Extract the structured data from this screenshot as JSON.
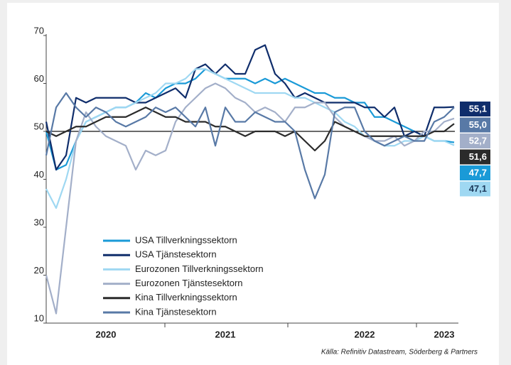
{
  "chart_data": {
    "type": "line",
    "categories": [
      null,
      null,
      null,
      null,
      null,
      null,
      "2020",
      null,
      null,
      null,
      null,
      null,
      null,
      null,
      null,
      null,
      null,
      null,
      "2021",
      null,
      null,
      null,
      null,
      null,
      null,
      null,
      null,
      null,
      null,
      null,
      null,
      null,
      "2022",
      null,
      null,
      null,
      null,
      null,
      null,
      null,
      "2023",
      null
    ],
    "ylim": [
      10,
      70
    ],
    "yticks": [
      10,
      20,
      30,
      40,
      50,
      60,
      70
    ],
    "hline": 50,
    "legend": "lower left",
    "source": "Källa: Refinitiv Datastream, Söderberg & Partners",
    "series": [
      {
        "name": "USA Tillverkningssektorn",
        "color": "#1a9ad7",
        "last_label": "47,7",
        "values": [
          50,
          42,
          43,
          48,
          52,
          53,
          54,
          55,
          55,
          56,
          58,
          57,
          59,
          60,
          60,
          61,
          63,
          62,
          61,
          61,
          61,
          60,
          61,
          60,
          61,
          60,
          59,
          58,
          58,
          57,
          57,
          56,
          56,
          53,
          53,
          52,
          51,
          50,
          49,
          48,
          48,
          47.7
        ]
      },
      {
        "name": "USA Tjänstesektorn",
        "color": "#0f2d6b",
        "last_label": "55,1",
        "values": [
          52,
          42,
          45,
          57,
          56,
          57,
          57,
          57,
          57,
          56,
          56,
          57,
          58,
          59,
          57,
          63,
          64,
          62,
          64,
          62,
          62,
          67,
          68,
          62,
          60,
          57,
          58,
          57,
          56,
          56,
          56,
          56,
          55,
          55,
          53,
          55,
          49,
          50,
          49,
          55,
          55,
          55.1
        ]
      },
      {
        "name": "Eurozonen Tillverkningssektorn",
        "color": "#9fd8f2",
        "last_label": "47,1",
        "values": [
          38,
          34,
          40,
          48,
          52,
          53,
          54,
          55,
          55,
          56,
          57,
          58,
          60,
          60,
          61,
          63,
          63,
          62,
          61,
          60,
          59,
          58,
          58,
          58,
          58,
          57,
          57,
          56,
          55,
          54,
          52,
          51,
          49,
          48,
          47,
          47,
          48,
          48,
          49,
          48,
          48,
          47.1
        ]
      },
      {
        "name": "Eurozonen Tjänstesektorn",
        "color": "#a3afc9",
        "last_label": "52,7",
        "values": [
          20,
          12,
          30,
          48,
          54,
          51,
          49,
          48,
          47,
          42,
          46,
          45,
          46,
          52,
          55,
          57,
          59,
          60,
          59,
          57,
          56,
          54,
          55,
          54,
          52,
          55,
          55,
          56,
          56,
          53,
          51,
          50,
          49,
          48,
          48,
          49,
          47,
          48,
          50,
          50,
          52,
          52.7
        ]
      },
      {
        "name": "Kina Tillverkningssektorn",
        "color": "#2b2b2b",
        "last_label": "51,6",
        "values": [
          50,
          49,
          50,
          51,
          51,
          52,
          53,
          53,
          53,
          54,
          55,
          54,
          53,
          53,
          52,
          52,
          52,
          51,
          51,
          50,
          49,
          50,
          50,
          50,
          49,
          50,
          48,
          46,
          48,
          52,
          51,
          50,
          49,
          49,
          49,
          49,
          49,
          49,
          49,
          50,
          50,
          51.6
        ]
      },
      {
        "name": "Kina Tjänstesektorn",
        "color": "#5879a6",
        "last_label": "55,0",
        "values": [
          45,
          55,
          58,
          55,
          53,
          55,
          54,
          52,
          51,
          52,
          53,
          55,
          54,
          55,
          53,
          51,
          55,
          47,
          55,
          52,
          52,
          54,
          53,
          52,
          52,
          50,
          42,
          36,
          41,
          54,
          55,
          55,
          50,
          48,
          47,
          48,
          49,
          48,
          48,
          52,
          53,
          55
        ]
      }
    ]
  }
}
